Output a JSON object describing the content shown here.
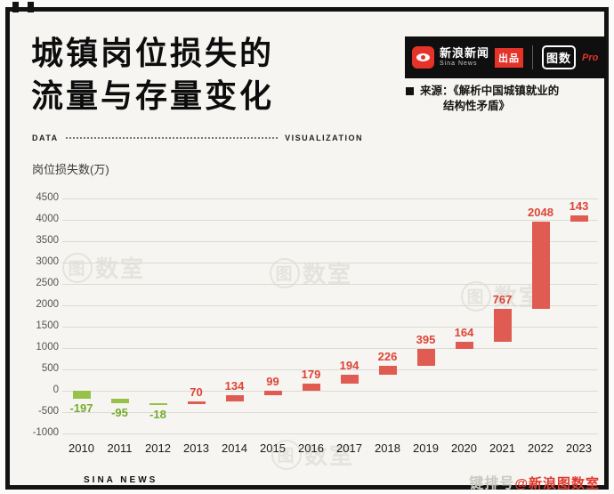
{
  "header": {
    "title_line1": "城镇岗位损失的",
    "title_line2": "流量与存量变化",
    "brand": {
      "sina_name": "新浪新闻",
      "sina_sub": "Sina News",
      "badge": "出品",
      "logo2": "图数",
      "logo2_suffix": "Pro"
    },
    "source_line1": "来源：《解析中国城镇就业的",
    "source_line2": "结构性矛盾》"
  },
  "divider": {
    "left": "DATA",
    "right": "VISUALIZATION"
  },
  "chart_data": {
    "type": "bar",
    "subtype": "waterfall",
    "title": "城镇岗位损失的流量与存量变化",
    "ylabel": "岗位损失数(万)",
    "categories": [
      "2010",
      "2011",
      "2012",
      "2013",
      "2014",
      "2015",
      "2016",
      "2017",
      "2018",
      "2019",
      "2020",
      "2021",
      "2022",
      "2023"
    ],
    "values": [
      -197,
      -95,
      -18,
      70,
      134,
      99,
      179,
      194,
      226,
      395,
      164,
      767,
      2048,
      143
    ],
    "labels": [
      "-197",
      "-95",
      "-18",
      "70",
      "134",
      "99",
      "179",
      "194",
      "226",
      "395",
      "164",
      "767",
      "2048",
      "143"
    ],
    "cumulative": true,
    "ylim": [
      -1000,
      4500
    ],
    "yticks": [
      4500,
      4000,
      3500,
      3000,
      2500,
      2000,
      1500,
      1000,
      500,
      0,
      -500,
      -1000
    ],
    "grid": true,
    "legend": "none",
    "colors": {
      "positive": "#e05c52",
      "negative": "#97c249",
      "label_positive": "#dd4437",
      "label_negative": "#76ab2f"
    }
  },
  "watermark": {
    "char": "图",
    "rest": "数室"
  },
  "footer": {
    "left": "SINA NEWS",
    "right_outline": "键排号",
    "right_red": "@新浪图数室"
  }
}
